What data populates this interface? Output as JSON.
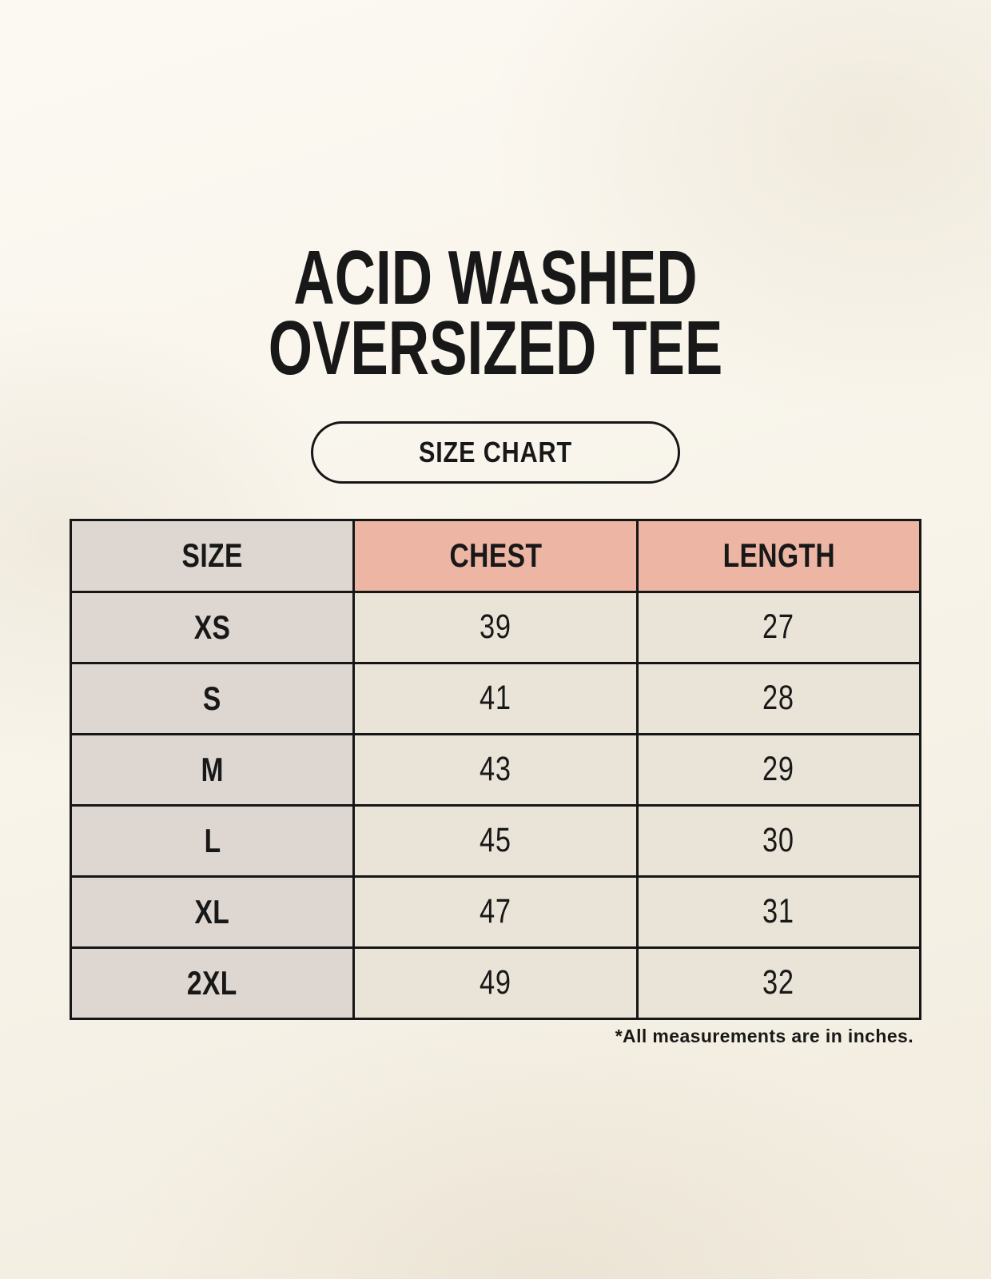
{
  "header": {
    "title_line1": "ACID WASHED",
    "title_line2": "OVERSIZED TEE",
    "badge": "SIZE CHART"
  },
  "colors": {
    "background": "#f8f4ea",
    "header_accent": "#ecb5a4",
    "header_neutral": "#ded7d1",
    "size_column": "#ded7d1",
    "value_cell": "#eae3d7",
    "border": "#161616",
    "text": "#181818"
  },
  "chart_data": {
    "type": "table",
    "title": "ACID WASHED OVERSIZED TEE",
    "subtitle": "SIZE CHART",
    "columns": [
      "SIZE",
      "CHEST",
      "LENGTH"
    ],
    "rows": [
      [
        "XS",
        "39",
        "27"
      ],
      [
        "S",
        "41",
        "28"
      ],
      [
        "M",
        "43",
        "29"
      ],
      [
        "L",
        "45",
        "30"
      ],
      [
        "XL",
        "47",
        "31"
      ],
      [
        "2XL",
        "49",
        "32"
      ]
    ],
    "units_note": "*All measurements are in inches.",
    "layout": {
      "grid": "on",
      "header_fills": [
        "neutral",
        "accent",
        "accent"
      ],
      "columns_equal_width": true
    }
  }
}
